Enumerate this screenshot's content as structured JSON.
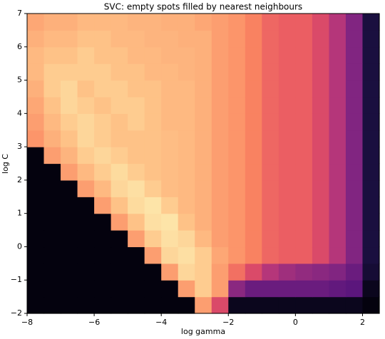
{
  "chart_data": {
    "type": "heatmap",
    "title": "SVC: empty spots filled by nearest neighbours",
    "x_label": "log gamma",
    "y_label": "log C",
    "colormap": "magma",
    "xlim": [
      -8,
      2.5
    ],
    "ylim": [
      -2,
      7
    ],
    "xticks": [
      {
        "value": -8,
        "label": "−8"
      },
      {
        "value": -6,
        "label": "−6"
      },
      {
        "value": -4,
        "label": "−4"
      },
      {
        "value": -2,
        "label": "−2"
      },
      0,
      2
    ],
    "yticks": [
      {
        "value": -2,
        "label": "−2"
      },
      {
        "value": -1,
        "label": "−1"
      },
      0,
      1,
      2,
      3,
      4,
      5,
      6,
      7
    ],
    "xbins": [
      -8,
      -7.5,
      -7,
      -6.5,
      -6,
      -5.5,
      -5,
      -4.5,
      -4,
      -3.5,
      -3,
      -2.5,
      -2,
      -1.5,
      -1,
      -0.5,
      0,
      0.5,
      1,
      1.5,
      2,
      2.5
    ],
    "ybins": [
      -2,
      -1.5,
      -1,
      -0.5,
      0,
      0.5,
      1,
      1.5,
      2,
      2.5,
      3,
      3.5,
      4,
      4.5,
      5,
      5.5,
      6,
      6.5,
      7
    ],
    "z": [
      [
        0.02,
        0.02,
        0.02,
        0.02,
        0.02,
        0.02,
        0.02,
        0.02,
        0.02,
        0.02,
        0.8,
        0.6,
        0.05,
        0.05,
        0.05,
        0.05,
        0.05,
        0.05,
        0.05,
        0.05,
        0.02
      ],
      [
        0.02,
        0.02,
        0.02,
        0.02,
        0.02,
        0.02,
        0.02,
        0.02,
        0.02,
        0.8,
        0.9,
        0.8,
        0.4,
        0.32,
        0.32,
        0.32,
        0.32,
        0.32,
        0.3,
        0.28,
        0.05
      ],
      [
        0.02,
        0.02,
        0.02,
        0.02,
        0.02,
        0.02,
        0.02,
        0.02,
        0.8,
        0.92,
        0.9,
        0.8,
        0.7,
        0.6,
        0.5,
        0.45,
        0.42,
        0.4,
        0.38,
        0.32,
        0.1
      ],
      [
        0.02,
        0.02,
        0.02,
        0.02,
        0.02,
        0.02,
        0.02,
        0.8,
        0.92,
        0.94,
        0.9,
        0.82,
        0.78,
        0.74,
        0.68,
        0.66,
        0.66,
        0.6,
        0.5,
        0.38,
        0.12
      ],
      [
        0.02,
        0.02,
        0.02,
        0.02,
        0.02,
        0.02,
        0.8,
        0.9,
        0.94,
        0.92,
        0.86,
        0.8,
        0.78,
        0.74,
        0.68,
        0.66,
        0.66,
        0.6,
        0.5,
        0.38,
        0.12
      ],
      [
        0.02,
        0.02,
        0.02,
        0.02,
        0.02,
        0.8,
        0.88,
        0.94,
        0.95,
        0.88,
        0.84,
        0.8,
        0.78,
        0.74,
        0.68,
        0.66,
        0.66,
        0.6,
        0.5,
        0.38,
        0.12
      ],
      [
        0.02,
        0.02,
        0.02,
        0.02,
        0.8,
        0.88,
        0.93,
        0.95,
        0.9,
        0.86,
        0.84,
        0.8,
        0.78,
        0.74,
        0.68,
        0.66,
        0.66,
        0.6,
        0.5,
        0.38,
        0.12
      ],
      [
        0.02,
        0.02,
        0.02,
        0.8,
        0.86,
        0.92,
        0.94,
        0.9,
        0.87,
        0.86,
        0.84,
        0.8,
        0.78,
        0.74,
        0.68,
        0.66,
        0.66,
        0.6,
        0.5,
        0.38,
        0.12
      ],
      [
        0.02,
        0.02,
        0.8,
        0.86,
        0.9,
        0.93,
        0.9,
        0.88,
        0.87,
        0.86,
        0.84,
        0.8,
        0.78,
        0.74,
        0.68,
        0.66,
        0.66,
        0.6,
        0.5,
        0.38,
        0.12
      ],
      [
        0.02,
        0.8,
        0.85,
        0.9,
        0.92,
        0.9,
        0.88,
        0.88,
        0.87,
        0.86,
        0.84,
        0.8,
        0.78,
        0.74,
        0.68,
        0.66,
        0.66,
        0.6,
        0.5,
        0.38,
        0.12
      ],
      [
        0.78,
        0.84,
        0.88,
        0.92,
        0.9,
        0.88,
        0.88,
        0.88,
        0.87,
        0.86,
        0.84,
        0.8,
        0.78,
        0.74,
        0.68,
        0.66,
        0.66,
        0.6,
        0.5,
        0.38,
        0.12
      ],
      [
        0.8,
        0.86,
        0.9,
        0.92,
        0.9,
        0.88,
        0.9,
        0.88,
        0.86,
        0.86,
        0.84,
        0.8,
        0.78,
        0.74,
        0.68,
        0.66,
        0.66,
        0.6,
        0.5,
        0.38,
        0.12
      ],
      [
        0.82,
        0.88,
        0.92,
        0.9,
        0.88,
        0.9,
        0.9,
        0.88,
        0.86,
        0.86,
        0.84,
        0.8,
        0.78,
        0.74,
        0.68,
        0.66,
        0.66,
        0.6,
        0.5,
        0.38,
        0.12
      ],
      [
        0.84,
        0.9,
        0.92,
        0.88,
        0.9,
        0.9,
        0.88,
        0.88,
        0.86,
        0.86,
        0.84,
        0.8,
        0.78,
        0.74,
        0.68,
        0.66,
        0.66,
        0.6,
        0.5,
        0.38,
        0.12
      ],
      [
        0.86,
        0.9,
        0.9,
        0.9,
        0.9,
        0.88,
        0.88,
        0.86,
        0.86,
        0.85,
        0.84,
        0.8,
        0.78,
        0.74,
        0.68,
        0.66,
        0.66,
        0.6,
        0.5,
        0.38,
        0.12
      ],
      [
        0.86,
        0.88,
        0.88,
        0.9,
        0.88,
        0.88,
        0.86,
        0.86,
        0.85,
        0.85,
        0.84,
        0.8,
        0.78,
        0.74,
        0.68,
        0.66,
        0.66,
        0.6,
        0.5,
        0.38,
        0.12
      ],
      [
        0.84,
        0.86,
        0.86,
        0.88,
        0.88,
        0.86,
        0.86,
        0.85,
        0.85,
        0.84,
        0.84,
        0.8,
        0.78,
        0.74,
        0.68,
        0.66,
        0.66,
        0.6,
        0.5,
        0.38,
        0.12
      ],
      [
        0.82,
        0.84,
        0.84,
        0.86,
        0.86,
        0.86,
        0.85,
        0.85,
        0.84,
        0.84,
        0.82,
        0.8,
        0.78,
        0.74,
        0.68,
        0.66,
        0.66,
        0.6,
        0.5,
        0.38,
        0.12
      ]
    ]
  }
}
